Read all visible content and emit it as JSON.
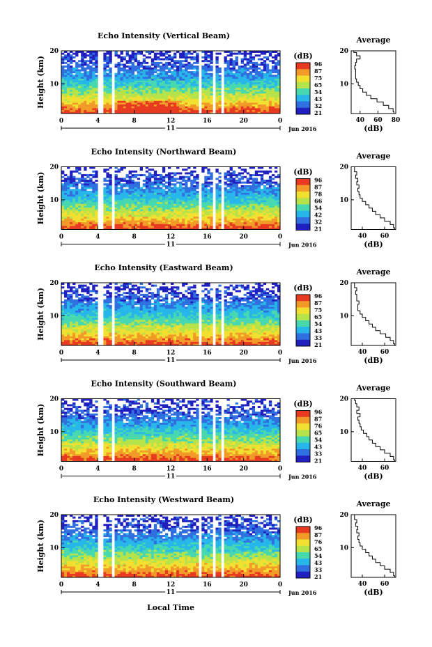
{
  "figure": {
    "xlabel": "Local Time",
    "day_label": "11",
    "date_label": "Jun 2016"
  },
  "colorscale": {
    "colors": [
      "#2020c0",
      "#2f6fe0",
      "#27b6ea",
      "#47d8b0",
      "#b6e34a",
      "#f2e030",
      "#f29a28",
      "#e83a20"
    ],
    "gap_color": "#ffffff"
  },
  "chart_data": [
    {
      "type": "heatmap",
      "title": "Echo Intensity (Vertical Beam)",
      "ylabel": "Height (km)",
      "ylim": [
        1,
        20
      ],
      "yticks": [
        "20",
        "10"
      ],
      "xlim": [
        0,
        24
      ],
      "xticks": [
        "0",
        "4",
        "8",
        "12",
        "16",
        "20",
        "0"
      ],
      "colorbar": {
        "unit": "(dB)",
        "ticks": [
          "96",
          "87",
          "75",
          "65",
          "54",
          "43",
          "32",
          "21"
        ]
      },
      "data_gaps_hours": [
        [
          4.1,
          4.5
        ],
        [
          5.6,
          5.9
        ],
        [
          15.0,
          15.5
        ],
        [
          16.7,
          17.0
        ],
        [
          17.4,
          17.7
        ]
      ],
      "average_profile": {
        "title": "Average",
        "xlabel": "(dB)",
        "xticks": [
          "40",
          "60",
          "80"
        ],
        "xlim": [
          30,
          80
        ],
        "heights_km": [
          1,
          2,
          3,
          4,
          5,
          6,
          7,
          8,
          9,
          10,
          11,
          12,
          13,
          14,
          15,
          16,
          17,
          18,
          19,
          20
        ],
        "values_db": [
          78,
          77,
          72,
          66,
          59,
          52,
          47,
          43,
          40,
          38,
          36,
          35,
          35,
          35,
          34,
          35,
          36,
          40,
          36,
          33
        ]
      }
    },
    {
      "type": "heatmap",
      "title": "Echo Intensity (Northward Beam)",
      "ylabel": "Height (km)",
      "ylim": [
        1,
        20
      ],
      "yticks": [
        "20",
        "10"
      ],
      "xlim": [
        0,
        24
      ],
      "xticks": [
        "0",
        "4",
        "8",
        "12",
        "16",
        "20",
        "0"
      ],
      "colorbar": {
        "unit": "(dB)",
        "ticks": [
          "96",
          "87",
          "78",
          "66",
          "54",
          "42",
          "32",
          "21"
        ]
      },
      "data_gaps_hours": [
        [
          4.1,
          4.5
        ],
        [
          5.6,
          5.9
        ],
        [
          15.0,
          15.5
        ],
        [
          16.7,
          17.0
        ],
        [
          17.4,
          17.7
        ]
      ],
      "average_profile": {
        "title": "Average",
        "xlabel": "(dB)",
        "xticks": [
          "40",
          "60"
        ],
        "xlim": [
          30,
          70
        ],
        "heights_km": [
          1,
          2,
          3,
          4,
          5,
          6,
          7,
          8,
          9,
          10,
          11,
          12,
          13,
          14,
          15,
          16,
          17,
          18,
          19,
          20
        ],
        "values_db": [
          69,
          68,
          65,
          60,
          56,
          52,
          49,
          46,
          43,
          40,
          38,
          37,
          36,
          37,
          35,
          36,
          34,
          35,
          33,
          33
        ]
      }
    },
    {
      "type": "heatmap",
      "title": "Echo Intensity (Eastward Beam)",
      "ylabel": "Height (km)",
      "ylim": [
        1,
        20
      ],
      "yticks": [
        "20",
        "10"
      ],
      "xlim": [
        0,
        24
      ],
      "xticks": [
        "0",
        "4",
        "8",
        "12",
        "16",
        "20",
        "0"
      ],
      "colorbar": {
        "unit": "(dB)",
        "ticks": [
          "96",
          "87",
          "75",
          "65",
          "54",
          "43",
          "33",
          "21"
        ]
      },
      "data_gaps_hours": [
        [
          4.1,
          4.5
        ],
        [
          5.6,
          5.9
        ],
        [
          15.0,
          15.5
        ],
        [
          16.7,
          17.0
        ],
        [
          17.4,
          17.7
        ]
      ],
      "average_profile": {
        "title": "Average",
        "xlabel": "(dB)",
        "xticks": [
          "40",
          "60"
        ],
        "xlim": [
          30,
          70
        ],
        "heights_km": [
          1,
          2,
          3,
          4,
          5,
          6,
          7,
          8,
          9,
          10,
          11,
          12,
          13,
          14,
          15,
          16,
          17,
          18,
          19,
          20
        ],
        "values_db": [
          69,
          68,
          65,
          61,
          56,
          52,
          49,
          46,
          43,
          40,
          38,
          36,
          36,
          37,
          35,
          35,
          34,
          35,
          33,
          33
        ]
      }
    },
    {
      "type": "heatmap",
      "title": "Echo Intensity (Southward Beam)",
      "ylabel": "Height (km)",
      "ylim": [
        1,
        20
      ],
      "yticks": [
        "20",
        "10"
      ],
      "xlim": [
        0,
        24
      ],
      "xticks": [
        "0",
        "4",
        "8",
        "12",
        "16",
        "20",
        "0"
      ],
      "colorbar": {
        "unit": "(dB)",
        "ticks": [
          "96",
          "87",
          "76",
          "65",
          "54",
          "43",
          "33",
          "21"
        ]
      },
      "data_gaps_hours": [
        [
          4.1,
          4.5
        ],
        [
          5.6,
          5.9
        ],
        [
          15.0,
          15.5
        ],
        [
          16.7,
          17.0
        ],
        [
          17.4,
          17.7
        ]
      ],
      "average_profile": {
        "title": "Average",
        "xlabel": "(dB)",
        "xticks": [
          "40",
          "60"
        ],
        "xlim": [
          30,
          70
        ],
        "heights_km": [
          1,
          2,
          3,
          4,
          5,
          6,
          7,
          8,
          9,
          10,
          11,
          12,
          13,
          14,
          15,
          16,
          17,
          18,
          19,
          20
        ],
        "values_db": [
          69,
          68,
          65,
          60,
          56,
          52,
          49,
          46,
          44,
          41,
          39,
          38,
          37,
          36,
          38,
          35,
          37,
          35,
          34,
          33
        ]
      }
    },
    {
      "type": "heatmap",
      "title": "Echo Intensity (Westward Beam)",
      "ylabel": "Height (km)",
      "ylim": [
        1,
        20
      ],
      "yticks": [
        "20",
        "10"
      ],
      "xlim": [
        0,
        24
      ],
      "xticks": [
        "0",
        "4",
        "8",
        "12",
        "16",
        "20",
        "0"
      ],
      "colorbar": {
        "unit": "(dB)",
        "ticks": [
          "96",
          "87",
          "76",
          "65",
          "54",
          "43",
          "33",
          "21"
        ]
      },
      "data_gaps_hours": [
        [
          4.1,
          4.5
        ],
        [
          5.6,
          5.9
        ],
        [
          15.0,
          15.5
        ],
        [
          16.7,
          17.0
        ],
        [
          17.4,
          17.7
        ]
      ],
      "average_profile": {
        "title": "Average",
        "xlabel": "(dB)",
        "xticks": [
          "40",
          "60"
        ],
        "xlim": [
          30,
          70
        ],
        "heights_km": [
          1,
          2,
          3,
          4,
          5,
          6,
          7,
          8,
          9,
          10,
          11,
          12,
          13,
          14,
          15,
          16,
          17,
          18,
          19,
          20
        ],
        "values_db": [
          69,
          68,
          65,
          60,
          56,
          52,
          49,
          46,
          43,
          40,
          38,
          37,
          36,
          37,
          35,
          36,
          34,
          35,
          33,
          33
        ]
      }
    }
  ]
}
